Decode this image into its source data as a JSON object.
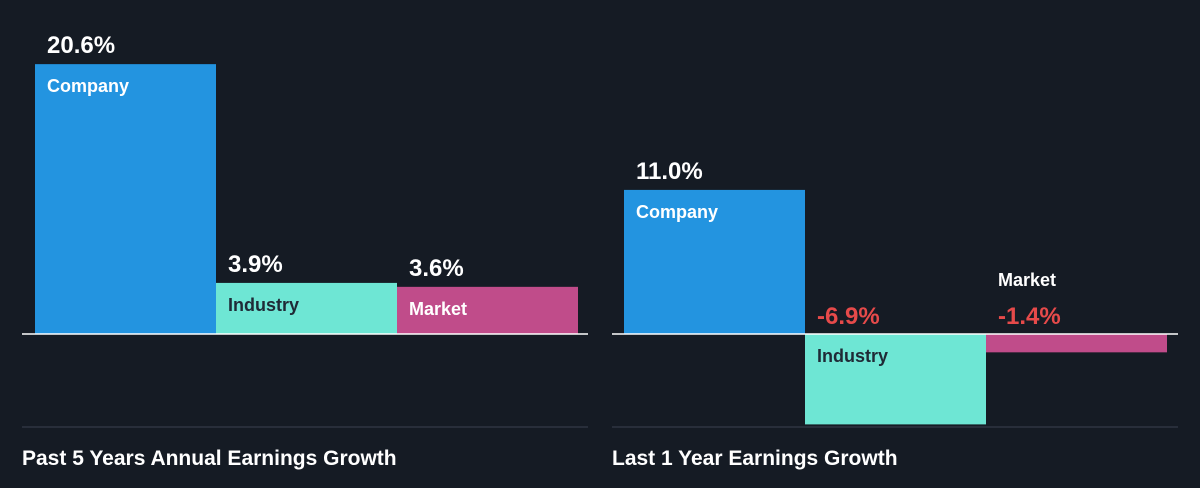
{
  "colors": {
    "background": "#151b24",
    "company": "#2394e0",
    "industry": "#6ee6d4",
    "market": "#c04c8a",
    "positive_text": "#ffffff",
    "negative_text": "#e64a4a",
    "axis": "#ffffff",
    "divider": "#3a4150"
  },
  "chart_data": [
    {
      "type": "bar",
      "title": "Past 5 Years Annual Earnings Growth",
      "categories": [
        "Company",
        "Industry",
        "Market"
      ],
      "values": [
        20.6,
        3.9,
        3.6
      ],
      "value_labels": [
        "20.6%",
        "3.9%",
        "3.6%"
      ],
      "unit": "%",
      "ylim": [
        -6.9,
        20.6
      ],
      "grid": false
    },
    {
      "type": "bar",
      "title": "Last 1 Year Earnings Growth",
      "categories": [
        "Company",
        "Industry",
        "Market"
      ],
      "values": [
        11.0,
        -6.9,
        -1.4
      ],
      "value_labels": [
        "11.0%",
        "-6.9%",
        "-1.4%"
      ],
      "unit": "%",
      "ylim": [
        -6.9,
        20.6
      ],
      "grid": false
    }
  ]
}
